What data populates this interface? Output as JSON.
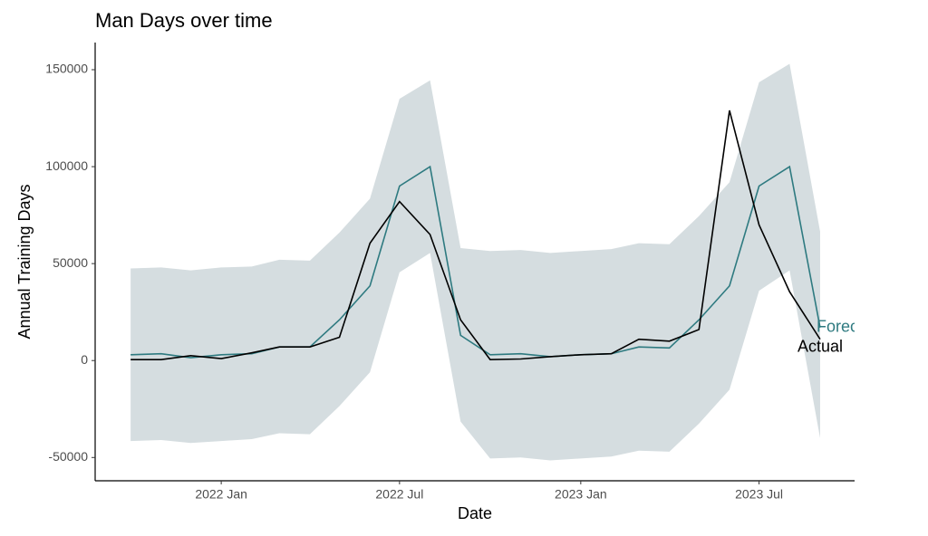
{
  "chart_data": {
    "type": "line",
    "title": "Man Days over time",
    "x_label": "Date",
    "y_label": "Annual Training Days",
    "x": [
      "2021-10",
      "2021-11",
      "2021-12",
      "2022-01",
      "2022-02",
      "2022-03",
      "2022-04",
      "2022-05",
      "2022-06",
      "2022-07",
      "2022-08",
      "2022-09",
      "2022-10",
      "2022-11",
      "2022-12",
      "2023-01",
      "2023-02",
      "2023-03",
      "2023-04",
      "2023-05",
      "2023-06",
      "2023-07",
      "2023-08",
      "2023-09"
    ],
    "series": [
      {
        "name": "Forecast",
        "color": "#2e7a80",
        "values": [
          3000,
          3500,
          1500,
          3000,
          3500,
          7000,
          7000,
          21000,
          38500,
          90000,
          100000,
          13000,
          3000,
          3500,
          2000,
          3000,
          3500,
          7000,
          6500,
          21000,
          38500,
          90000,
          100000,
          17000
        ]
      },
      {
        "name": "Actual",
        "color": "#000000",
        "values": [
          500,
          500,
          2500,
          1000,
          4000,
          7000,
          7000,
          12000,
          60500,
          82000,
          65000,
          21000,
          500,
          800,
          2000,
          3000,
          3500,
          11000,
          10000,
          16000,
          129000,
          70000,
          35500,
          11000
        ]
      }
    ],
    "band": {
      "color": "#d5dde0",
      "upper": [
        47500,
        48000,
        46500,
        48000,
        48500,
        52000,
        51500,
        66000,
        83500,
        135000,
        144500,
        58000,
        56500,
        57000,
        55500,
        56500,
        57500,
        60500,
        60000,
        74500,
        92000,
        143500,
        153000,
        66500
      ],
      "lower": [
        -41500,
        -41000,
        -42500,
        -41500,
        -40500,
        -37500,
        -38000,
        -23500,
        -6000,
        45500,
        55500,
        -31500,
        -50500,
        -50000,
        -51500,
        -50500,
        -49500,
        -46500,
        -47000,
        -32500,
        -15000,
        36000,
        46500,
        -40000
      ]
    },
    "xlim": [
      "2021-08-26",
      "2023-10-06"
    ],
    "xticks": [
      {
        "value": "2022-01",
        "label": "2022 Jan"
      },
      {
        "value": "2022-07",
        "label": "2022 Jul"
      },
      {
        "value": "2023-01",
        "label": "2023 Jan"
      },
      {
        "value": "2023-07",
        "label": "2023 Jul"
      }
    ],
    "ylim": [
      -62000,
      164000
    ],
    "yticks": [
      -50000,
      0,
      50000,
      100000,
      150000
    ],
    "grid": false
  }
}
